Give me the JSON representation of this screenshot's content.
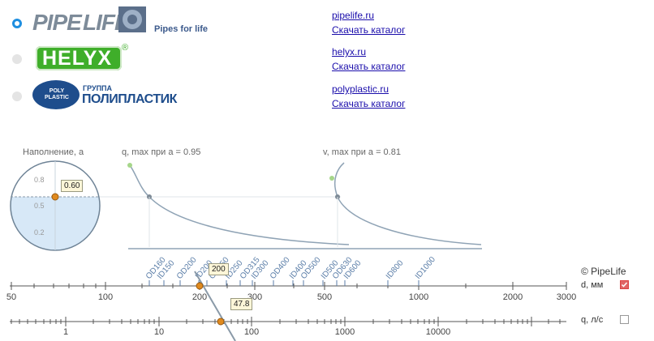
{
  "brands": [
    {
      "name": "PipeLife",
      "tagline": "Pipes for life",
      "url": "pipelife.ru",
      "catalog": "Скачать каталог",
      "selected": true
    },
    {
      "name": "HELYX",
      "tagline": "",
      "url": "helyx.ru",
      "catalog": "Скачать каталог",
      "selected": false
    },
    {
      "name": "ПОЛИПЛАСТИК",
      "tagline": "ГРУППА",
      "url": "polyplastic.ru",
      "catalog": "Скачать каталог",
      "selected": false
    }
  ],
  "logo_text": {
    "pipelife_left": "PIPE",
    "pipelife_right": "LIFE",
    "helyx_mark": "®",
    "poly_badge": "POLY PLASTIC"
  },
  "chart_titles": {
    "fill": "Наполнение, a",
    "q": "q, max при a = 0.95",
    "v": "v, max при a = 0.81"
  },
  "fill_gauge": {
    "value": 0.6,
    "value_label": "0.60",
    "ticks": [
      "0.8",
      "0.5",
      "0.2"
    ]
  },
  "copyright": "© PipeLife",
  "d_scale": {
    "label": "d, мм",
    "checked": true,
    "ticks": [
      "50",
      "100",
      "200",
      "300",
      "500",
      "1000",
      "2000",
      "3000"
    ],
    "value_label": "200",
    "value": 200
  },
  "q_scale": {
    "label": "q, л/с",
    "checked": false,
    "ticks": [
      "1",
      "10",
      "100",
      "1000",
      "10000"
    ],
    "value_label": "47.8",
    "value": 47.8
  },
  "pipe_sizes": [
    "OD160",
    "ID150",
    "OD200",
    "ID200",
    "OD250",
    "ID250",
    "OD315",
    "ID300",
    "OD400",
    "ID400",
    "OD500",
    "ID500",
    "OD630",
    "ID600",
    "ID800",
    "ID1000"
  ],
  "colors": {
    "accent": "#1f8fe0",
    "marker": "#e08a1e",
    "curve": "#8fa3b5",
    "fill": "#d7e8f7"
  }
}
